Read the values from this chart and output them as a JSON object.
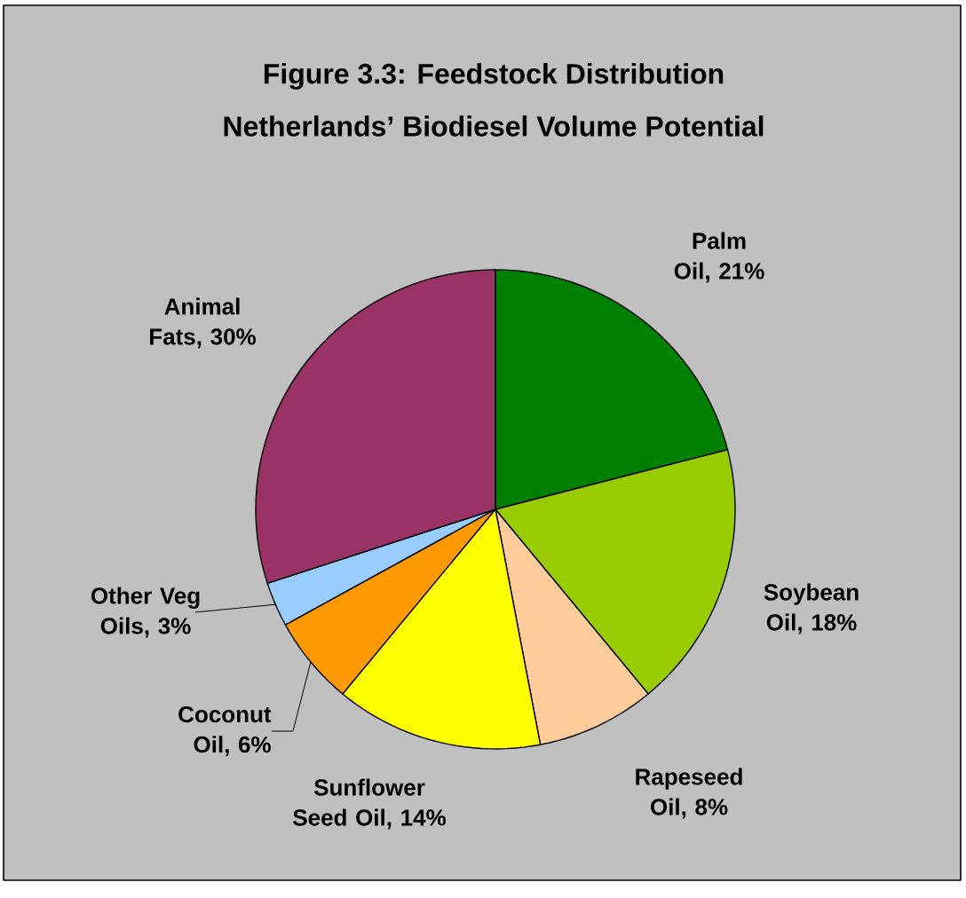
{
  "chart_data": {
    "type": "pie",
    "title": "Figure 3.3: Feedstock Distribution",
    "subtitle": "Netherlands’ Biodiesel Volume Potential",
    "categories": [
      "Palm Oil, 21%",
      "Soybean Oil, 18%",
      "Rapeseed Oil, 8%",
      "Sunflower Seed Oil, 14%",
      "Coconut Oil, 6%",
      "Other Veg Oils, 3%",
      "Animal Fats, 30%"
    ],
    "values": [
      21,
      18,
      8,
      14,
      6,
      3,
      30
    ],
    "colors": [
      "#008000",
      "#99cc00",
      "#ffcc99",
      "#ffff00",
      "#ff9900",
      "#99ccff",
      "#993366"
    ]
  }
}
